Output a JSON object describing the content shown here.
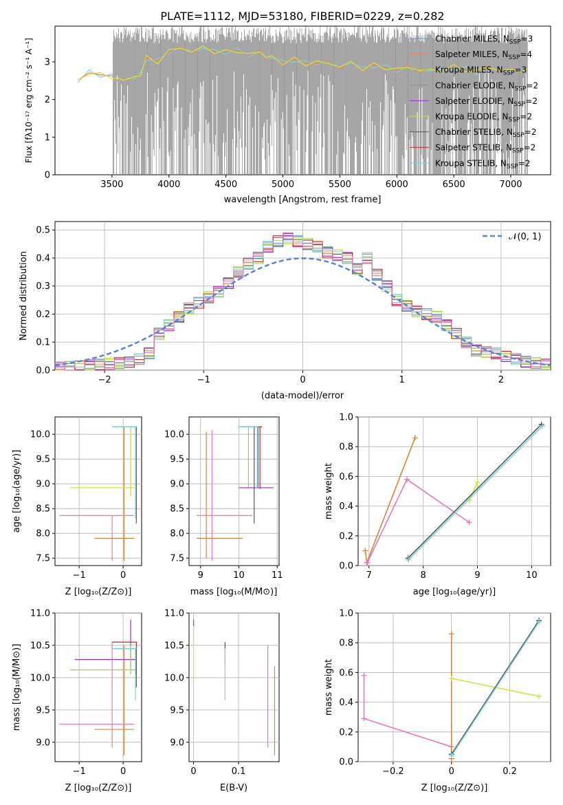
{
  "figure": {
    "title": "PLATE=1112, MJD=53180, FIBERID=0229, z=0.282"
  },
  "colors": {
    "Chabrier MILES": "#6f8fd8",
    "Salpeter MILES": "#e8825a",
    "Kroupa MILES": "#9bd33c",
    "Chabrier ELODIE": "#8c8c8c",
    "Salpeter ELODIE": "#9a2fd8",
    "Kroupa ELODIE": "#d2e63a",
    "Chabrier STELIB": "#555555",
    "Salpeter STELIB": "#c0261e",
    "Kroupa STELIB": "#7fd3d8",
    "pink": "#e377c2",
    "orange": "#d9823b",
    "data": "#808080",
    "normal": "#5b84d6"
  },
  "chart_data": [
    {
      "id": "spectrum",
      "type": "line",
      "xlabel": "wavelength [Angstrom, rest frame]",
      "ylabel": "Flux [fλ10⁻¹⁷ erg cm⁻² s⁻¹ A⁻¹]",
      "xlim": [
        3000,
        7350
      ],
      "ylim": [
        0,
        3.95
      ],
      "xticks": [
        3500,
        4000,
        4500,
        5000,
        5500,
        6000,
        6500,
        7000
      ],
      "yticks": [
        0,
        1,
        2,
        3
      ],
      "legend_position": "top-right",
      "legend": [
        {
          "label": "Chabrier MILES, N",
          "sub": "SSP",
          "tail": "=3"
        },
        {
          "label": "Salpeter MILES, N",
          "sub": "SSP",
          "tail": "=4"
        },
        {
          "label": "Kroupa MILES, N",
          "sub": "SSP",
          "tail": "=3"
        },
        {
          "label": "Chabrier ELODIE, N",
          "sub": "SSP",
          "tail": "=2"
        },
        {
          "label": "Salpeter ELODIE, N",
          "sub": "SSP",
          "tail": "=2"
        },
        {
          "label": "Kroupa ELODIE, N",
          "sub": "SSP",
          "tail": "=2"
        },
        {
          "label": "Chabrier STELIB, N",
          "sub": "SSP",
          "tail": "=2"
        },
        {
          "label": "Salpeter STELIB, N",
          "sub": "SSP",
          "tail": "=2"
        },
        {
          "label": "Kroupa STELIB, N",
          "sub": "SSP",
          "tail": "=2"
        }
      ],
      "model_x": [
        3200,
        3300,
        3400,
        3500,
        3550,
        3600,
        3650,
        3700,
        3750,
        3800,
        3900,
        4000,
        4100,
        4200,
        4300,
        4400,
        4500,
        4600,
        4700,
        4800,
        4850,
        4900,
        5000,
        5100,
        5200,
        5300,
        5400,
        5500,
        5600,
        5700,
        5800,
        5900,
        6000,
        6100,
        6200,
        6300,
        6400,
        6500,
        6600,
        6700,
        6800,
        6900,
        7000,
        7100,
        7150
      ],
      "model_y": [
        2.45,
        2.75,
        2.65,
        2.6,
        2.55,
        2.5,
        2.6,
        2.55,
        2.7,
        3.1,
        3.0,
        3.3,
        3.35,
        3.3,
        3.35,
        3.3,
        3.25,
        3.3,
        3.2,
        3.25,
        3.15,
        3.1,
        3.0,
        3.05,
        2.95,
        3.0,
        2.95,
        2.9,
        2.95,
        2.85,
        2.9,
        2.85,
        2.8,
        2.85,
        2.8,
        2.75,
        2.8,
        2.85,
        2.8,
        2.75,
        2.85,
        2.8,
        2.75,
        2.8,
        2.75
      ],
      "data_range": [
        3510,
        7150
      ]
    },
    {
      "id": "residuals",
      "type": "line",
      "xlabel": "(data-model)/error",
      "ylabel": "Normed distribution",
      "xlim": [
        -2.5,
        2.5
      ],
      "ylim": [
        0,
        0.53
      ],
      "xticks": [
        -2,
        -1,
        0,
        1,
        2
      ],
      "yticks": [
        0.0,
        0.1,
        0.2,
        0.3,
        0.4,
        0.5
      ],
      "legend_position": "top-right",
      "legend_label": "𝒩(0, 1)",
      "bin_edges": [
        -2.5,
        -2.4,
        -2.3,
        -2.2,
        -2.1,
        -2.0,
        -1.9,
        -1.8,
        -1.7,
        -1.6,
        -1.5,
        -1.4,
        -1.3,
        -1.2,
        -1.1,
        -1.0,
        -0.9,
        -0.8,
        -0.7,
        -0.6,
        -0.5,
        -0.4,
        -0.3,
        -0.2,
        -0.1,
        0.0,
        0.1,
        0.2,
        0.3,
        0.4,
        0.5,
        0.6,
        0.7,
        0.8,
        0.9,
        1.0,
        1.1,
        1.2,
        1.3,
        1.4,
        1.5,
        1.6,
        1.7,
        1.8,
        1.9,
        2.0,
        2.1,
        2.2,
        2.3,
        2.4,
        2.5
      ],
      "hist_values": [
        0.01,
        0.012,
        0.015,
        0.018,
        0.02,
        0.022,
        0.025,
        0.028,
        0.04,
        0.06,
        0.13,
        0.16,
        0.19,
        0.22,
        0.24,
        0.26,
        0.28,
        0.31,
        0.35,
        0.38,
        0.4,
        0.44,
        0.46,
        0.47,
        0.46,
        0.45,
        0.44,
        0.42,
        0.41,
        0.4,
        0.36,
        0.4,
        0.34,
        0.3,
        0.25,
        0.23,
        0.21,
        0.2,
        0.19,
        0.16,
        0.13,
        0.1,
        0.07,
        0.065,
        0.06,
        0.05,
        0.04,
        0.03,
        0.025,
        0.02
      ]
    },
    {
      "id": "z-age",
      "type": "scatter",
      "xlabel": "Z [log₁₀(Z/Z⊙)]",
      "ylabel": "age  [log₁₀(age/yr)]",
      "xlim": [
        -1.55,
        0.42
      ],
      "ylim": [
        7.35,
        10.35
      ],
      "xticks": [
        -1,
        0
      ],
      "yticks": [
        7.5,
        8.0,
        8.5,
        9.0,
        9.5,
        10.0
      ]
    },
    {
      "id": "mass-age",
      "type": "scatter",
      "xlabel": "mass [log₁₀(M/M⊙)]",
      "ylabel": "",
      "xlim": [
        8.7,
        11.05
      ],
      "ylim": [
        7.35,
        10.35
      ],
      "xticks": [
        9,
        10,
        11
      ],
      "yticks": [
        7.5,
        8.0,
        8.5,
        9.0,
        9.5,
        10.0
      ]
    },
    {
      "id": "age-weight",
      "type": "line",
      "xlabel": "age  [log₁₀(age/yr)]",
      "ylabel": "mass weight",
      "xlim": [
        6.8,
        10.35
      ],
      "ylim": [
        0,
        1.0
      ],
      "xticks": [
        7,
        8,
        9,
        10
      ],
      "yticks": [
        0.0,
        0.2,
        0.4,
        0.6,
        0.8,
        1.0
      ]
    },
    {
      "id": "z-mass",
      "type": "scatter",
      "xlabel": "Z [log₁₀(Z/Z⊙)]",
      "ylabel": "mass [log₁₀(M/M⊙)]",
      "xlim": [
        -1.55,
        0.42
      ],
      "ylim": [
        8.7,
        11.0
      ],
      "xticks": [
        -1,
        0
      ],
      "yticks": [
        9.0,
        9.5,
        10.0,
        10.5,
        11.0
      ]
    },
    {
      "id": "ebv-mass",
      "type": "scatter",
      "xlabel": "E(B-V)",
      "ylabel": "",
      "xlim": [
        -0.01,
        0.19
      ],
      "ylim": [
        8.7,
        11.0
      ],
      "xticks": [
        0.0,
        0.1
      ],
      "yticks": [
        9.0,
        9.5,
        10.0,
        10.5,
        11.0
      ]
    },
    {
      "id": "z-weight",
      "type": "line",
      "xlabel": "Z [log₁₀(Z/Z⊙)]",
      "ylabel": "mass weight",
      "xlim": [
        -0.32,
        0.34
      ],
      "ylim": [
        0,
        1.0
      ],
      "xticks": [
        -0.2,
        0.0,
        0.2
      ],
      "yticks": [
        0.0,
        0.2,
        0.4,
        0.6,
        0.8,
        1.0
      ]
    }
  ]
}
